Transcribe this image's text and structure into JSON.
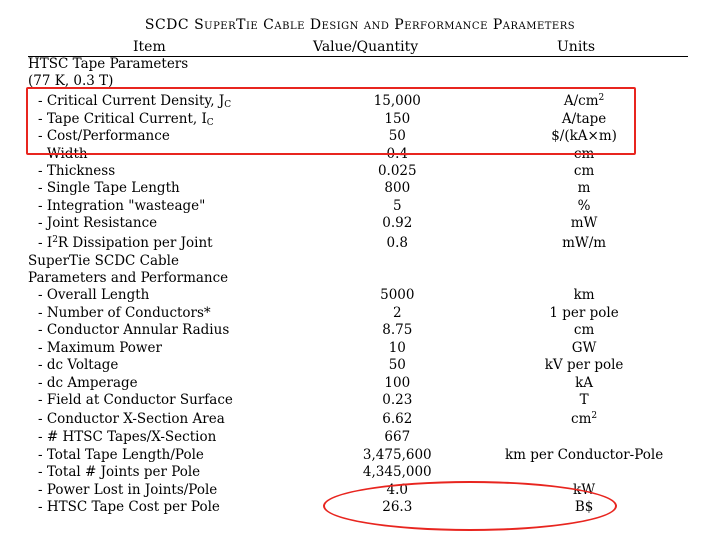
{
  "title": "SCDC SuperTie Cable Design and Performance Parameters",
  "headers": {
    "item": "Item",
    "value": "Value/Quantity",
    "units": "Units"
  },
  "sections": {
    "tape_1": "HTSC Tape Parameters",
    "tape_2": "(77 K, 0.3 T)",
    "cable_1": "SuperTie SCDC Cable",
    "cable_2": "Parameters and Performance"
  },
  "rows": {
    "r1": {
      "item_pre": "- Critical Current Density, J",
      "item_sub": "C",
      "value": "15,000",
      "unit_pre": "A/cm",
      "unit_sup": "2"
    },
    "r2": {
      "item_pre": "- Tape Critical Current, I",
      "item_sub": "C",
      "value": "150",
      "unit": "A/tape"
    },
    "r3": {
      "item": "- Cost/Performance",
      "value": "50",
      "unit": "$/(kA×m)"
    },
    "r4": {
      "item": "- Width",
      "value": "0.4",
      "unit": "cm"
    },
    "r5": {
      "item": "- Thickness",
      "value": "0.025",
      "unit": "cm"
    },
    "r6": {
      "item": "- Single Tape Length",
      "value": "800",
      "unit": "m"
    },
    "r7": {
      "item": "- Integration \"wasteage\"",
      "value": "5",
      "unit": "%"
    },
    "r8": {
      "item": "- Joint Resistance",
      "value": "0.92",
      "unit": "mW"
    },
    "r9": {
      "item_pre": "- I",
      "item_sup": "2",
      "item_post": "R Dissipation per Joint",
      "value": "0.8",
      "unit": "mW/m"
    },
    "r10": {
      "item": "- Overall Length",
      "value": "5000",
      "unit": "km"
    },
    "r11": {
      "item": "- Number of Conductors*",
      "value": "2",
      "unit": "1 per pole"
    },
    "r12": {
      "item": "- Conductor Annular Radius",
      "value": "8.75",
      "unit": "cm"
    },
    "r13": {
      "item": "- Maximum Power",
      "value": "10",
      "unit": "GW"
    },
    "r14": {
      "item": "- dc Voltage",
      "value": "50",
      "unit": "kV per pole"
    },
    "r15": {
      "item": "- dc Amperage",
      "value": "100",
      "unit": "kA"
    },
    "r16": {
      "item": "- Field at Conductor Surface",
      "value": "0.23",
      "unit": "T"
    },
    "r17": {
      "item": "- Conductor X-Section Area",
      "value": "6.62",
      "unit_pre": "cm",
      "unit_sup": "2"
    },
    "r18": {
      "item": "- # HTSC Tapes/X-Section",
      "value": "667",
      "unit": ""
    },
    "r19": {
      "item": "- Total Tape Length/Pole",
      "value": "3,475,600",
      "unit": "km per Conductor-Pole"
    },
    "r20": {
      "item": "- Total # Joints per Pole",
      "value": "4,345,000",
      "unit": ""
    },
    "r21": {
      "item": "- Power Lost in Joints/Pole",
      "value": "4.0",
      "unit": "kW"
    },
    "r22": {
      "item": "- HTSC Tape Cost per Pole",
      "value": "26.3",
      "unit": "B$"
    }
  },
  "colors": {
    "annotation": "#e8251f"
  }
}
